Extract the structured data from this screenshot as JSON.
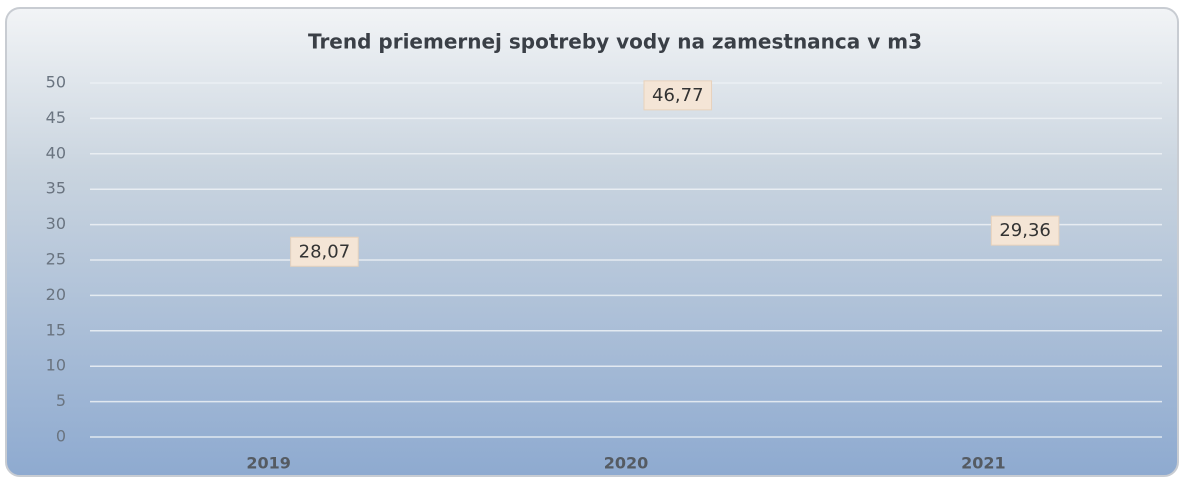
{
  "chart_data": {
    "type": "line",
    "title": "Trend priemernej spotreby vody na zamestnanca v m3",
    "categories": [
      "2019",
      "2020",
      "2021"
    ],
    "series": [
      {
        "name": null,
        "color": "#2f5aa6",
        "values": [
          28.07,
          46.77,
          29.36
        ],
        "value_labels": [
          "28,07",
          "46,77",
          "29,36"
        ]
      }
    ],
    "ylim": [
      0,
      50
    ],
    "yticks": [
      0,
      5,
      10,
      15,
      20,
      25,
      30,
      35,
      40,
      45,
      50
    ],
    "grid": true
  }
}
